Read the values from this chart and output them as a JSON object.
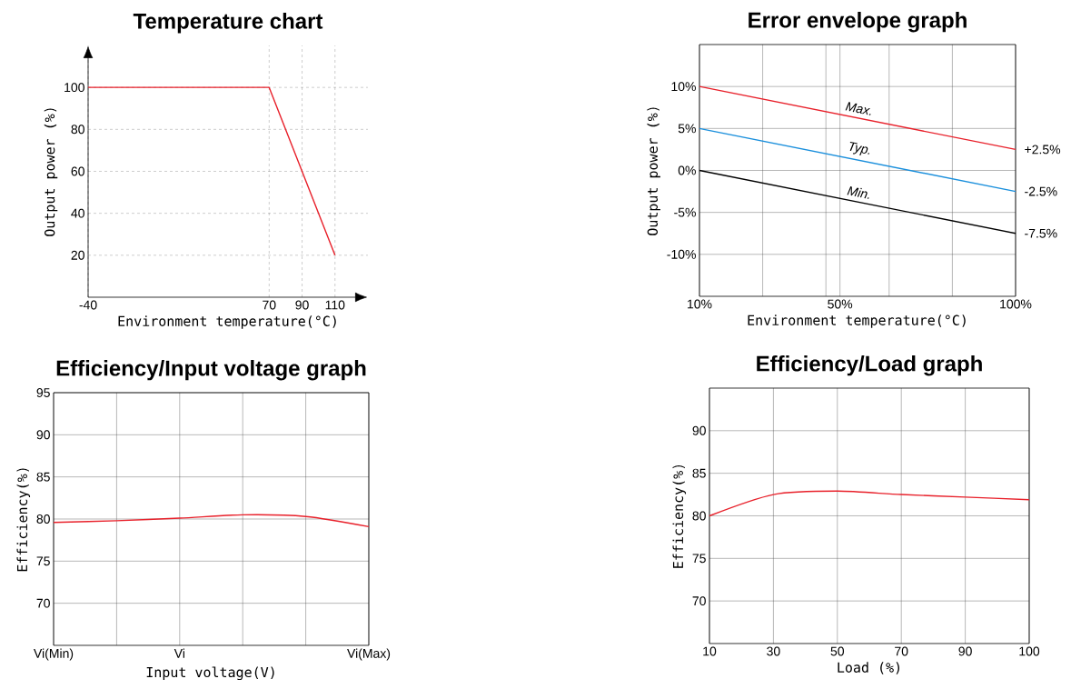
{
  "chart_data": [
    {
      "type": "line",
      "title": "Temperature chart",
      "xlabel": "Environment temperature(°C)",
      "ylabel": "Output power (%)",
      "x": [
        -40,
        70,
        90,
        110
      ],
      "values": [
        100,
        100,
        60,
        20
      ],
      "color": "#e8202a",
      "xlim": [
        -40,
        130
      ],
      "xticks": [
        -40,
        70,
        90,
        110
      ],
      "ylim": [
        0,
        120
      ],
      "yticks": [
        20,
        40,
        60,
        80,
        100
      ],
      "grid": true
    },
    {
      "type": "line",
      "title": "Error envelope graph",
      "xlabel": "Environment temperature(°C)",
      "ylabel": "Output power (%)",
      "x": [
        10,
        100
      ],
      "series": [
        {
          "name": "Max.",
          "color": "#e8202a",
          "values": [
            10,
            2.5
          ],
          "value_labels": [
            null,
            "+2.5%"
          ]
        },
        {
          "name": "Typ.",
          "color": "#1a8fdc",
          "values": [
            5,
            -2.5
          ],
          "value_labels": [
            null,
            "-2.5%"
          ]
        },
        {
          "name": "Min.",
          "color": "#000000",
          "values": [
            0,
            -7.5
          ],
          "value_labels": [
            null,
            "-7.5%"
          ]
        }
      ],
      "xlim": [
        10,
        100
      ],
      "xticks": [
        {
          "value": 10,
          "label": "10%"
        },
        {
          "value": 28,
          "label": null
        },
        {
          "value": 46,
          "label": null
        },
        {
          "value": 50,
          "label": "50%"
        },
        {
          "value": 64,
          "label": null
        },
        {
          "value": 82,
          "label": null
        },
        {
          "value": 100,
          "label": "100%"
        }
      ],
      "ylim": [
        -15,
        15
      ],
      "yticks": [
        {
          "value": -10,
          "label": "-10%"
        },
        {
          "value": -5,
          "label": "-5%"
        },
        {
          "value": 0,
          "label": "0%"
        },
        {
          "value": 5,
          "label": "5%"
        },
        {
          "value": 10,
          "label": "10%"
        }
      ],
      "grid": true
    },
    {
      "type": "line",
      "title": "Efficiency/Input voltage graph",
      "xlabel": "Input voltage(V)",
      "ylabel": "Efficiency(%)",
      "categories": [
        "Vi(Min)",
        null,
        "Vi",
        null,
        null,
        "Vi(Max)"
      ],
      "values": [
        79.6,
        79.8,
        80.1,
        80.5,
        80.3,
        79.1
      ],
      "color": "#e8202a",
      "ylim": [
        65,
        95
      ],
      "yticks": [
        70,
        75,
        80,
        85,
        90,
        95
      ],
      "grid": true
    },
    {
      "type": "line",
      "title": "Efficiency/Load graph",
      "xlabel": "Load (%)",
      "ylabel": "Efficiency(%)",
      "categories": [
        "10",
        "30",
        "50",
        "70",
        "90",
        "100"
      ],
      "values": [
        80.0,
        82.5,
        82.9,
        82.5,
        82.2,
        81.9
      ],
      "color": "#e8202a",
      "ylim": [
        65,
        95
      ],
      "yticks": [
        70,
        75,
        80,
        85,
        90
      ],
      "grid": true
    }
  ]
}
